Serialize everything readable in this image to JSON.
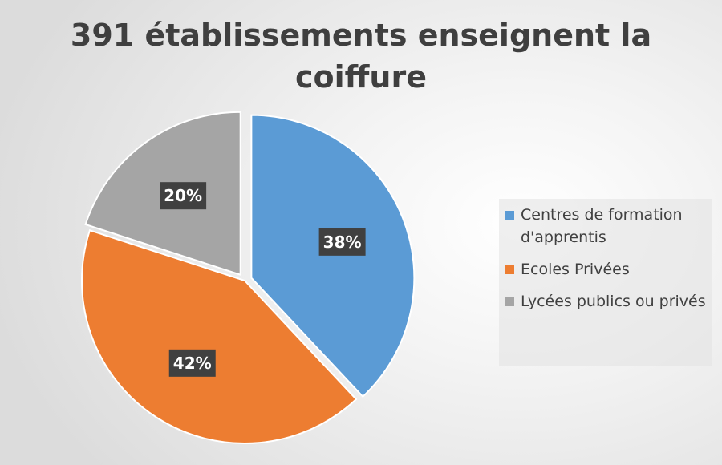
{
  "chart_data": {
    "type": "pie",
    "title": "391 établissements enseignent la coiffure",
    "categories": [
      "Centres de formation d'apprentis",
      "Ecoles Privées",
      "Lycées publics ou privés"
    ],
    "values": [
      38,
      42,
      20
    ],
    "labels": [
      "38%",
      "42%",
      "20%"
    ],
    "colors": [
      "#5b9bd5",
      "#ed7d31",
      "#a5a5a5"
    ],
    "explode": [
      true,
      false,
      true
    ],
    "legend_position": "right"
  },
  "title_lines": [
    "391 établissements enseignent la",
    "coiffure"
  ],
  "legend": [
    {
      "label": "Centres de formation d'apprentis",
      "color": "#5b9bd5"
    },
    {
      "label": "Ecoles Privées",
      "color": "#ed7d31"
    },
    {
      "label": "Lycées publics ou privés",
      "color": "#a5a5a5"
    }
  ]
}
